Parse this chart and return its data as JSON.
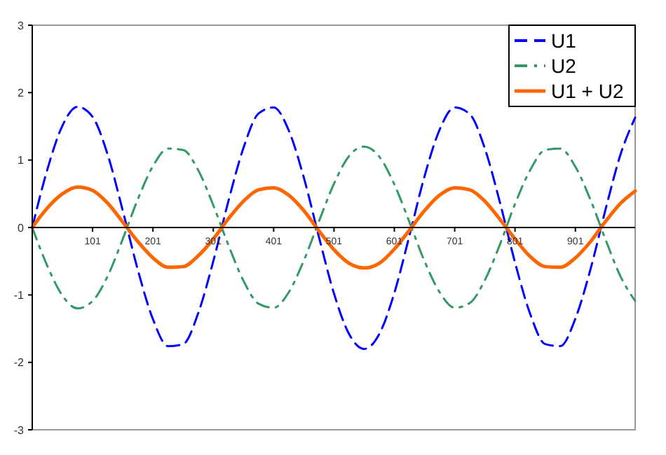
{
  "chart_data": {
    "type": "line",
    "x": [
      1,
      26,
      51,
      76,
      101,
      126,
      151,
      176,
      201,
      226,
      251,
      276,
      301,
      326,
      351,
      376,
      401,
      426,
      451,
      476,
      501,
      526,
      551,
      576,
      601,
      626,
      651,
      676,
      701,
      726,
      751,
      776,
      801,
      826,
      851,
      876,
      901,
      926,
      951,
      976,
      1000
    ],
    "series": [
      {
        "name": "U1",
        "color": "#0000ff",
        "line_style": "dashed",
        "values": [
          0,
          0.86,
          1.51,
          1.79,
          1.64,
          1.08,
          0.25,
          -0.63,
          -1.36,
          -1.76,
          -1.73,
          -1.27,
          -0.5,
          0.39,
          1.18,
          1.69,
          1.78,
          1.44,
          0.74,
          -0.14,
          -0.98,
          -1.58,
          -1.8,
          -1.58,
          -0.97,
          -0.12,
          0.76,
          1.45,
          1.78,
          1.68,
          1.17,
          0.37,
          -0.52,
          -1.28,
          -1.73,
          -1.76,
          -1.35,
          -0.62,
          0.27,
          1.09,
          1.63
        ]
      },
      {
        "name": "U2",
        "color": "#339966",
        "line_style": "dashdot",
        "values": [
          0,
          -0.57,
          -1.01,
          -1.2,
          -1.09,
          -0.72,
          -0.17,
          0.42,
          0.91,
          1.17,
          1.15,
          0.85,
          0.33,
          -0.26,
          -0.79,
          -1.13,
          -1.19,
          -0.96,
          -0.49,
          0.09,
          0.65,
          1.06,
          1.2,
          1.05,
          0.64,
          0.08,
          -0.5,
          -0.96,
          -1.19,
          -1.12,
          -0.78,
          -0.25,
          0.35,
          0.85,
          1.15,
          1.17,
          0.9,
          0.41,
          -0.18,
          -0.73,
          -1.09
        ]
      },
      {
        "name": "U1 + U2",
        "color": "#ff6600",
        "line_style": "solid",
        "values": [
          0,
          0.29,
          0.5,
          0.6,
          0.55,
          0.36,
          0.08,
          -0.21,
          -0.45,
          -0.59,
          -0.58,
          -0.42,
          -0.17,
          0.13,
          0.39,
          0.56,
          0.59,
          0.48,
          0.25,
          -0.05,
          -0.33,
          -0.53,
          -0.6,
          -0.53,
          -0.32,
          -0.04,
          0.25,
          0.48,
          0.59,
          0.56,
          0.39,
          0.12,
          -0.17,
          -0.43,
          -0.58,
          -0.59,
          -0.45,
          -0.21,
          0.09,
          0.36,
          0.54
        ]
      }
    ],
    "xlim": [
      1,
      1000
    ],
    "xticks": [
      101,
      201,
      301,
      401,
      501,
      601,
      701,
      801,
      901
    ],
    "ylim": [
      -3,
      3
    ],
    "yticks": [
      -3,
      -2,
      -1,
      0,
      1,
      2,
      3
    ],
    "grid": false,
    "legend": "top right",
    "marker": "none"
  }
}
